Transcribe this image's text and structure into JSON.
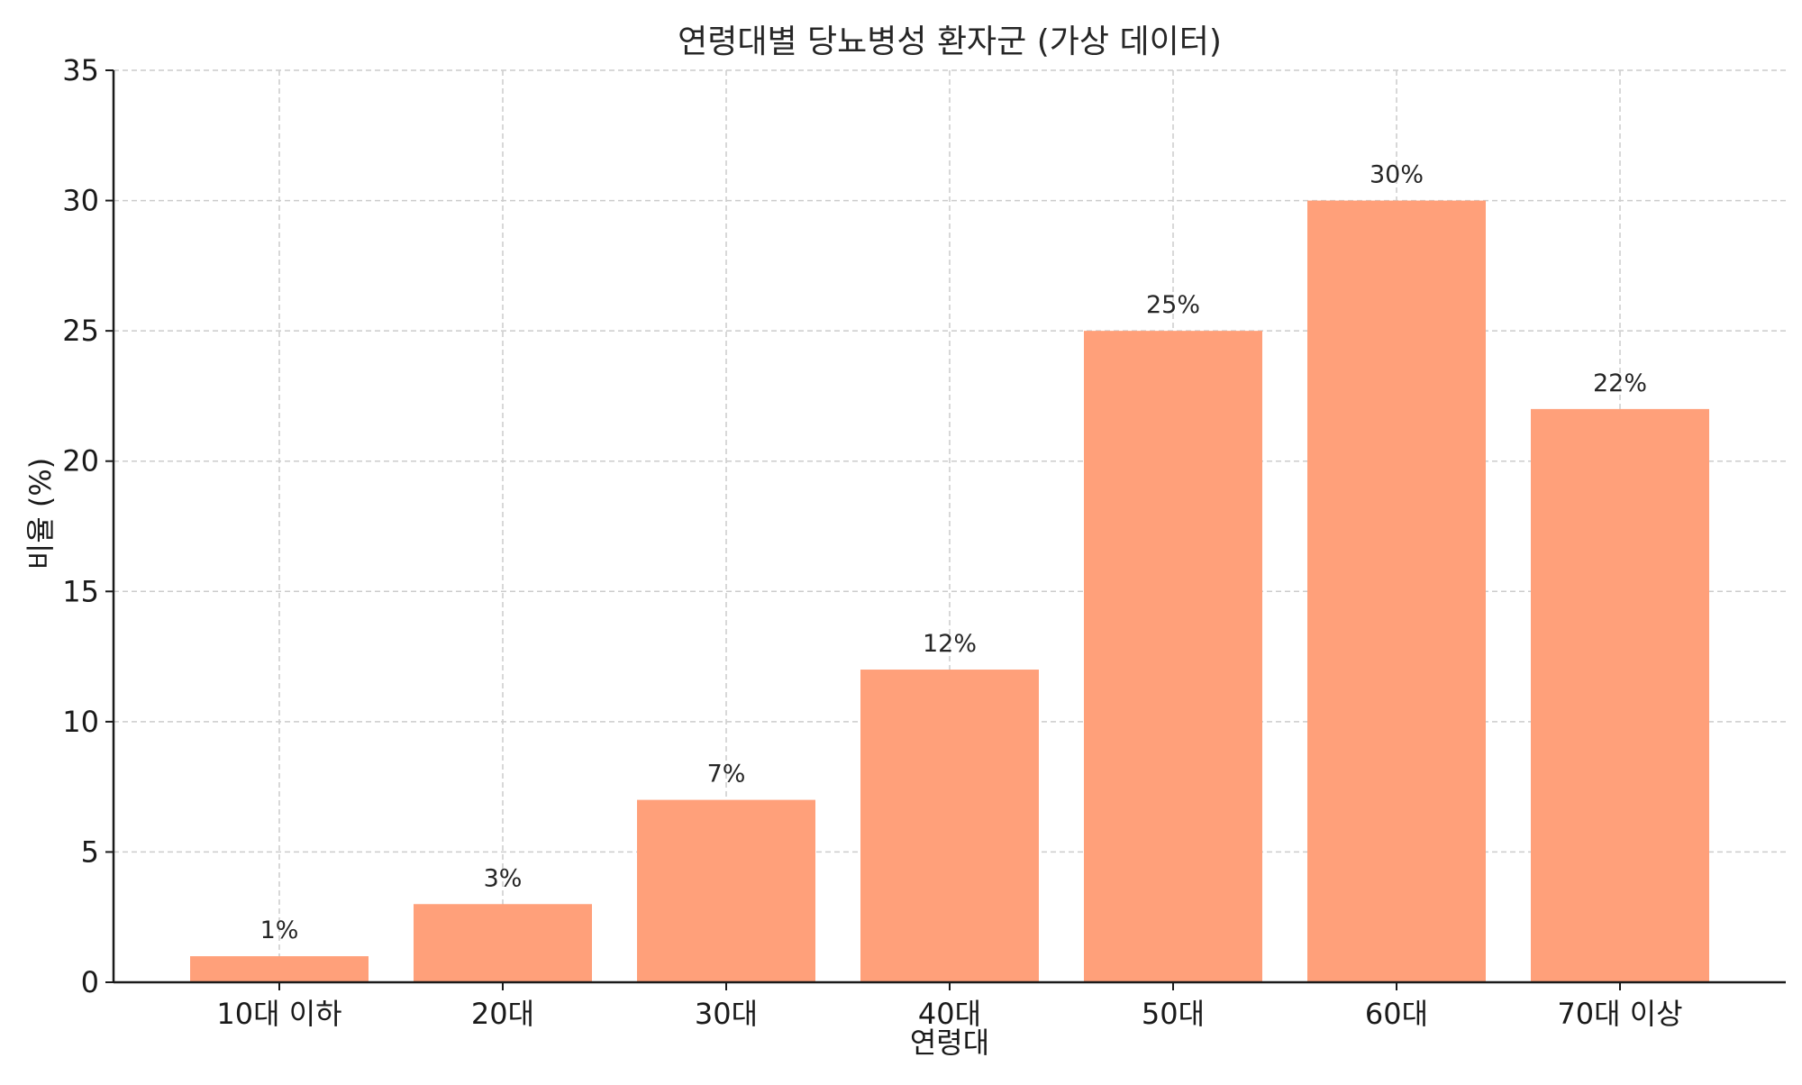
{
  "chart_data": {
    "type": "bar",
    "title": "연령대별 당뇨병성 환자군 (가상 데이터)",
    "xlabel": "연령대",
    "ylabel": "비율 (%)",
    "categories": [
      "10대 이하",
      "20대",
      "30대",
      "40대",
      "50대",
      "60대",
      "70대 이상"
    ],
    "values": [
      1,
      3,
      7,
      12,
      25,
      30,
      22
    ],
    "data_labels": [
      "1%",
      "3%",
      "7%",
      "12%",
      "25%",
      "30%",
      "22%"
    ],
    "ylim": [
      0,
      35
    ],
    "yticks": [
      0,
      5,
      10,
      15,
      20,
      25,
      30,
      35
    ],
    "grid": true,
    "legend": "none",
    "bar_color": "#FFA07A"
  }
}
